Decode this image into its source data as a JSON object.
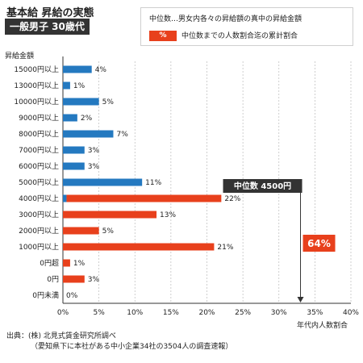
{
  "header": {
    "title": "基本給 昇給の実態",
    "subtitle": "一般男子 30歳代"
  },
  "legend": {
    "item1": "中位数…男女内各々の昇給額の真中の昇給金額",
    "item2_swatch": "%",
    "item2": "中位数までの人数割合迄の累計割合"
  },
  "source": {
    "line1": "出典：(株) 北見式賃金研究所調べ",
    "line2": "（愛知県下に本社がある中小企業34社の3504人の調査速報）"
  },
  "annotations": {
    "median_label": "中位数 4500円",
    "cumulative_label": "64%"
  },
  "colors": {
    "blue": "#2479c0",
    "red": "#e8401c",
    "grid": "#bbbbbb"
  },
  "chart_data": {
    "type": "bar",
    "orientation": "horizontal",
    "title": "基本給 昇給の実態",
    "subtitle": "一般男子 30歳代",
    "ylabel": "昇給金額",
    "xlabel": "年代内人数割合",
    "xlim": [
      0,
      40
    ],
    "xticks": [
      "0%",
      "5%",
      "10%",
      "15%",
      "20%",
      "25%",
      "30%",
      "35%",
      "40%"
    ],
    "grid": true,
    "categories": [
      "15000円以上",
      "13000円以上",
      "10000円以上",
      "9000円以上",
      "8000円以上",
      "7000円以上",
      "6000円以上",
      "5000円以上",
      "4000円以上",
      "3000円以上",
      "2000円以上",
      "1000円以上",
      "0円超",
      "0円",
      "0円未満"
    ],
    "values": [
      4,
      1,
      5,
      2,
      7,
      3,
      3,
      11,
      22,
      13,
      5,
      21,
      1,
      3,
      0
    ],
    "labels": [
      "4%",
      "1%",
      "5%",
      "2%",
      "7%",
      "3%",
      "3%",
      "11%",
      "22%",
      "13%",
      "5%",
      "21%",
      "1%",
      "3%",
      "0%"
    ],
    "colors": [
      "blue",
      "blue",
      "blue",
      "blue",
      "blue",
      "blue",
      "blue",
      "blue",
      "red",
      "red",
      "red",
      "red",
      "red",
      "red",
      "red"
    ],
    "split_bar": {
      "category": "4000円以上",
      "blue_part": 0.5
    },
    "median_marker": {
      "x_value": 33,
      "label": "中位数 4500円"
    },
    "cumulative_share": "64%"
  }
}
